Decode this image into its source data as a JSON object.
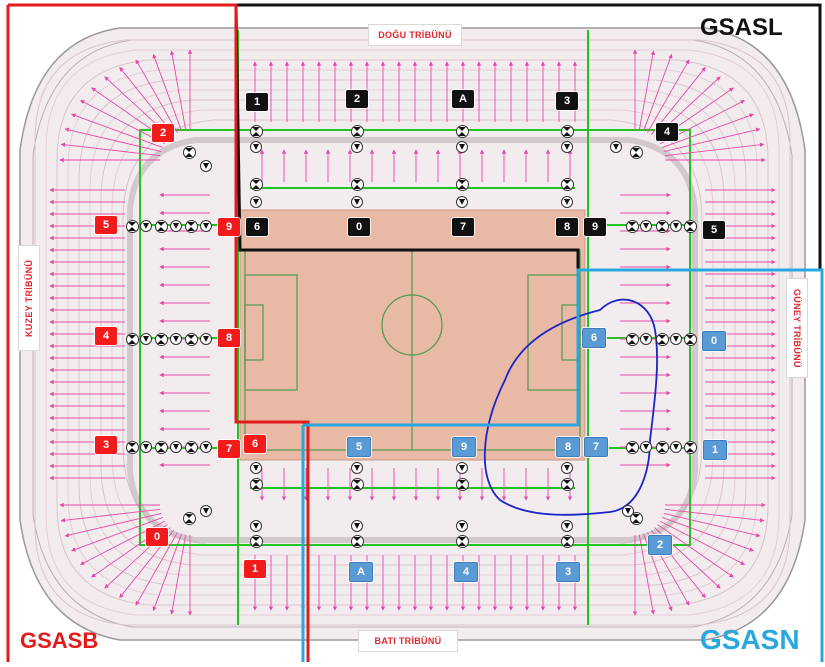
{
  "stands": {
    "north": "DOĞU TRİBÜNÜ",
    "south": "BATI TRİBÜNÜ",
    "west": "KUZEY TRİBÜNÜ",
    "east": "GÜNEY TRİBÜNÜ"
  },
  "zones": {
    "gsasl": {
      "label": "GSASL",
      "color": "#111111"
    },
    "gsasb": {
      "label": "GSASB",
      "color": "#e41b1b"
    },
    "gsasn": {
      "label": "GSASN",
      "color": "#29a8df"
    }
  },
  "colors": {
    "field": "#e8b9a4",
    "pitch_lines": "#4f9a4f",
    "concourse": "#22c322",
    "flow_arrows": "#e64aa8",
    "route": "#1b25c8",
    "seating": "#f1e7ea"
  },
  "markers": {
    "black": [
      "1",
      "2",
      "A",
      "3",
      "4",
      "6",
      "0",
      "7",
      "8",
      "9",
      "5"
    ],
    "red": [
      "2",
      "5",
      "9",
      "4",
      "8",
      "3",
      "7",
      "6",
      "0",
      "1"
    ],
    "blue": [
      "6",
      "0",
      "7",
      "1",
      "5",
      "9",
      "8",
      "2",
      "A",
      "4",
      "3"
    ]
  },
  "legend": {
    "checkpoint_icon": "turnstile-icon",
    "funnel_icon": "filter-icon"
  }
}
